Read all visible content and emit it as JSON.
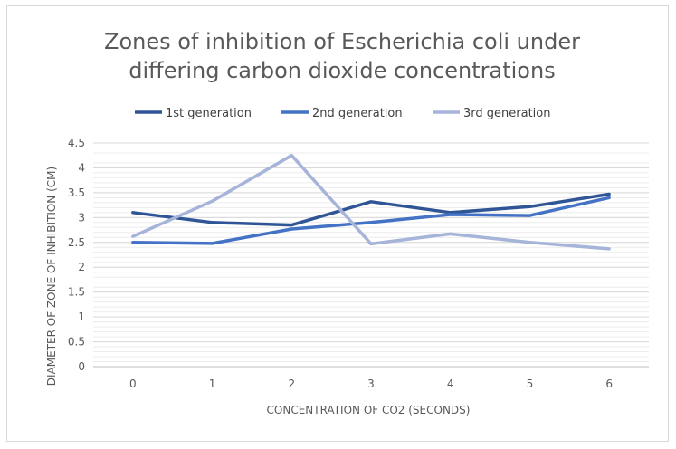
{
  "chart_data": {
    "type": "line",
    "title_lines": [
      "Zones of inhibition of Escherichia coli under",
      "differing carbon dioxide concentrations"
    ],
    "xlabel": "CONCENTRATION OF CO2 (SECONDS)",
    "ylabel": "DIAMETER OF ZONE OF INHIBITION (CM)",
    "categories": [
      "0",
      "1",
      "2",
      "3",
      "4",
      "5",
      "6"
    ],
    "yticks": [
      "0",
      "0.5",
      "1",
      "1.5",
      "2",
      "2.5",
      "3",
      "3.5",
      "4",
      "4.5"
    ],
    "ylim": [
      0,
      4.5
    ],
    "minor_gridlines": true,
    "legend_position": "top",
    "series": [
      {
        "name": "1st generation",
        "color": "#2f5597",
        "values": [
          3.1,
          2.9,
          2.85,
          3.32,
          3.1,
          3.22,
          3.47
        ]
      },
      {
        "name": "2nd generation",
        "color": "#4472c4",
        "values": [
          2.5,
          2.48,
          2.77,
          2.9,
          3.06,
          3.04,
          3.4
        ]
      },
      {
        "name": "3rd generation",
        "color": "#a5b4d8",
        "values": [
          2.62,
          3.33,
          4.25,
          2.47,
          2.67,
          2.5,
          2.37
        ]
      }
    ]
  }
}
